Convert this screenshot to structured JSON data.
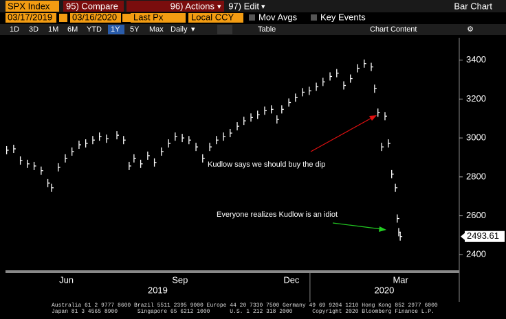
{
  "toolbar": {
    "ticker": "SPX Index",
    "buttons": [
      "95) Compare",
      "96) Actions",
      "97) Edit"
    ],
    "view": "Bar Chart"
  },
  "controls": {
    "start": "03/17/2019",
    "end": "03/16/2020",
    "field": "Last Px",
    "currency": "Local CCY",
    "toggles": [
      "Mov Avgs",
      "Key Events"
    ]
  },
  "periods": [
    "1D",
    "3D",
    "1M",
    "6M",
    "YTD",
    "1Y",
    "5Y",
    "Max"
  ],
  "selected_period": 5,
  "frequency": "Daily",
  "table": "Table",
  "chart_content": "Chart Content",
  "footer": [
    "Australia 61 2 9777 8600 Brazil 5511 2395 9000 Europe 44 20 7330 7500 Germany 49 69 9204 1210 Hong Kong 852 2977 6000",
    "Japan 81 3 4565 8900      Singapore 65 6212 1000      U.S. 1 212 318 2000      Copyright 2020 Bloomberg Finance L.P."
  ],
  "chart_data": {
    "type": "ohlc",
    "color": "#ffffff",
    "x": [
      3.83,
      4.02,
      4.2,
      4.39,
      4.57,
      4.76,
      4.94,
      5.04,
      5.22,
      5.41,
      5.59,
      5.78,
      5.96,
      6.15,
      6.33,
      6.52,
      6.8,
      6.98,
      7.13,
      7.26,
      7.44,
      7.63,
      7.81,
      8.0,
      8.19,
      8.37,
      8.56,
      8.74,
      8.93,
      9.11,
      9.3,
      9.48,
      9.67,
      9.85,
      10.04,
      10.22,
      10.41,
      10.59,
      10.78,
      10.96,
      11.11,
      11.24,
      11.43,
      11.61,
      11.8,
      11.98,
      12.17,
      12.35,
      12.54,
      12.72,
      12.91,
      13.09,
      13.28,
      13.46,
      13.65,
      13.74,
      13.83,
      13.93,
      14.02,
      14.11,
      14.2,
      14.3,
      14.35,
      14.39,
      14.43
    ],
    "values": [
      2937,
      2944,
      2884,
      2867,
      2856,
      2832,
      2768,
      2744,
      2849,
      2895,
      2930,
      2965,
      2972,
      2989,
      3007,
      2996,
      3014,
      2989,
      2856,
      2895,
      2867,
      2909,
      2874,
      2930,
      2972,
      3007,
      3000,
      2989,
      2954,
      2895,
      2954,
      2989,
      3007,
      3025,
      3060,
      3088,
      3105,
      3119,
      3140,
      3147,
      3095,
      3147,
      3182,
      3207,
      3235,
      3242,
      3263,
      3288,
      3316,
      3333,
      3270,
      3305,
      3358,
      3382,
      3365,
      3253,
      3130,
      2954,
      3112,
      2972,
      2814,
      2744,
      2586,
      2516,
      2493.61
    ],
    "xlim": [
      3.8,
      16.02
    ],
    "ylim": [
      2320,
      3515
    ],
    "yticks": [
      2400,
      2600,
      2800,
      3000,
      3200,
      3400
    ],
    "xticks": [
      {
        "value": 5.44,
        "label": "Jun"
      },
      {
        "value": 8.5,
        "label": "Sep"
      },
      {
        "value": 11.5,
        "label": "Dec"
      },
      {
        "value": 14.44,
        "label": "Mar"
      }
    ],
    "year_ticks": [
      {
        "value": 7.9,
        "label": "2019"
      },
      {
        "value": 14.0,
        "label": "2020"
      }
    ],
    "year_divider": 12,
    "annotations": [
      {
        "text": "Kudlow says we should buy the dip"
      },
      {
        "text": "Everyone realizes Kudlow is an idiot"
      }
    ]
  }
}
